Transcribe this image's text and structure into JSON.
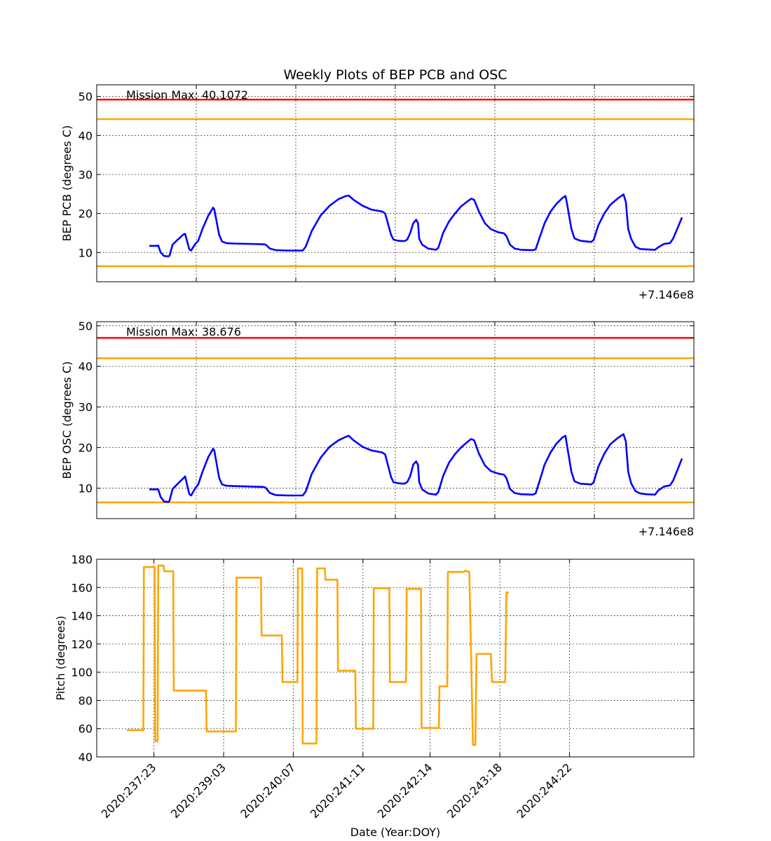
{
  "figure": {
    "title": "Weekly Plots of BEP PCB and OSC",
    "xlabel": "Date (Year:DOY)"
  },
  "chart_data": [
    {
      "type": "line",
      "name": "bep-pcb",
      "ylabel": "BEP PCB (degrees C)",
      "ylim": [
        2.5,
        53
      ],
      "yticks": [
        10,
        20,
        30,
        40,
        50
      ],
      "offset_label": "+7.146e8",
      "annotation": "Mission Max: 40.1072",
      "grid": true,
      "limits": [
        {
          "value": 49.2,
          "color": "#ff0000"
        },
        {
          "value": 44.2,
          "color": "#ffa500"
        },
        {
          "value": 6.5,
          "color": "#ffa500"
        }
      ],
      "series_color": "#0000ff",
      "points": [
        [
          237.88,
          11.7
        ],
        [
          238.0,
          11.7
        ],
        [
          238.03,
          11.8
        ],
        [
          238.07,
          10
        ],
        [
          238.13,
          9.1
        ],
        [
          238.2,
          9.0
        ],
        [
          238.22,
          9.2
        ],
        [
          238.27,
          12
        ],
        [
          238.35,
          13.2
        ],
        [
          238.45,
          14.6
        ],
        [
          238.48,
          14.8
        ],
        [
          238.55,
          10.8
        ],
        [
          238.58,
          10.5
        ],
        [
          238.65,
          12.2
        ],
        [
          238.7,
          13
        ],
        [
          238.77,
          16
        ],
        [
          238.87,
          19.5
        ],
        [
          238.95,
          21.5
        ],
        [
          238.97,
          21
        ],
        [
          239.05,
          14.5
        ],
        [
          239.1,
          12.8
        ],
        [
          239.17,
          12.4
        ],
        [
          239.3,
          12.3
        ],
        [
          239.55,
          12.2
        ],
        [
          239.8,
          12.1
        ],
        [
          239.83,
          12
        ],
        [
          239.9,
          11
        ],
        [
          240.0,
          10.6
        ],
        [
          240.2,
          10.5
        ],
        [
          240.45,
          10.5
        ],
        [
          240.5,
          11.5
        ],
        [
          240.6,
          15.5
        ],
        [
          240.75,
          19.5
        ],
        [
          240.9,
          22
        ],
        [
          241.05,
          23.7
        ],
        [
          241.18,
          24.5
        ],
        [
          241.22,
          24.6
        ],
        [
          241.3,
          23.5
        ],
        [
          241.45,
          22
        ],
        [
          241.6,
          21
        ],
        [
          241.78,
          20.5
        ],
        [
          241.83,
          20
        ],
        [
          241.93,
          14.5
        ],
        [
          241.97,
          13.3
        ],
        [
          242.05,
          13
        ],
        [
          242.15,
          12.9
        ],
        [
          242.2,
          13.3
        ],
        [
          242.25,
          15
        ],
        [
          242.3,
          17.5
        ],
        [
          242.35,
          18.4
        ],
        [
          242.38,
          17.5
        ],
        [
          242.4,
          13.5
        ],
        [
          242.45,
          12
        ],
        [
          242.55,
          11
        ],
        [
          242.68,
          10.7
        ],
        [
          242.72,
          11.2
        ],
        [
          242.8,
          15
        ],
        [
          242.9,
          18
        ],
        [
          243.0,
          20
        ],
        [
          243.1,
          21.8
        ],
        [
          243.2,
          23
        ],
        [
          243.27,
          23.8
        ],
        [
          243.32,
          23.5
        ],
        [
          243.4,
          20.5
        ],
        [
          243.5,
          17.5
        ],
        [
          243.6,
          16
        ],
        [
          243.72,
          15.2
        ],
        [
          243.82,
          14.9
        ],
        [
          243.86,
          14.2
        ],
        [
          243.92,
          12
        ],
        [
          244.0,
          11
        ],
        [
          244.1,
          10.7
        ],
        [
          244.3,
          10.6
        ],
        [
          244.35,
          10.8
        ],
        [
          244.42,
          14
        ],
        [
          244.5,
          17.5
        ],
        [
          244.6,
          20.5
        ],
        [
          244.7,
          22.5
        ],
        [
          244.8,
          24
        ],
        [
          244.85,
          24.5
        ],
        [
          244.87,
          23
        ],
        [
          244.95,
          16
        ],
        [
          245.0,
          13.6
        ],
        [
          245.1,
          13
        ],
        [
          245.22,
          12.8
        ],
        [
          245.28,
          12.7
        ],
        [
          245.32,
          13.2
        ],
        [
          245.4,
          17
        ],
        [
          245.5,
          20
        ],
        [
          245.6,
          22.2
        ],
        [
          245.72,
          23.8
        ],
        [
          245.82,
          24.9
        ],
        [
          245.86,
          23
        ],
        [
          245.9,
          16
        ],
        [
          245.95,
          13.5
        ],
        [
          246.02,
          11.5
        ],
        [
          246.1,
          10.9
        ],
        [
          246.2,
          10.8
        ],
        [
          246.35,
          10.7
        ],
        [
          246.4,
          11.3
        ],
        [
          246.5,
          12.2
        ],
        [
          246.6,
          12.4
        ],
        [
          246.65,
          13.5
        ],
        [
          246.72,
          16
        ],
        [
          246.8,
          19
        ]
      ]
    },
    {
      "type": "line",
      "name": "bep-osc",
      "ylabel": "BEP OSC (degrees C)",
      "ylim": [
        2.5,
        51
      ],
      "yticks": [
        10,
        20,
        30,
        40,
        50
      ],
      "offset_label": "+7.146e8",
      "annotation": "Mission Max: 38.676",
      "grid": true,
      "limits": [
        {
          "value": 47.0,
          "color": "#ff0000"
        },
        {
          "value": 42.0,
          "color": "#ffa500"
        },
        {
          "value": 6.5,
          "color": "#ffa500"
        }
      ],
      "series_color": "#0000ff",
      "points": [
        [
          237.88,
          9.7
        ],
        [
          238.03,
          9.7
        ],
        [
          238.07,
          7.8
        ],
        [
          238.13,
          6.7
        ],
        [
          238.2,
          6.6
        ],
        [
          238.22,
          6.9
        ],
        [
          238.27,
          9.8
        ],
        [
          238.35,
          11
        ],
        [
          238.45,
          12.4
        ],
        [
          238.48,
          12.9
        ],
        [
          238.55,
          8.5
        ],
        [
          238.58,
          8.2
        ],
        [
          238.65,
          10
        ],
        [
          238.7,
          10.9
        ],
        [
          238.77,
          14
        ],
        [
          238.87,
          17.7
        ],
        [
          238.95,
          19.7
        ],
        [
          238.97,
          19.2
        ],
        [
          239.05,
          12.5
        ],
        [
          239.1,
          10.9
        ],
        [
          239.17,
          10.6
        ],
        [
          239.3,
          10.5
        ],
        [
          239.55,
          10.4
        ],
        [
          239.8,
          10.3
        ],
        [
          239.83,
          10.1
        ],
        [
          239.9,
          8.8
        ],
        [
          240.0,
          8.3
        ],
        [
          240.2,
          8.2
        ],
        [
          240.45,
          8.2
        ],
        [
          240.5,
          9.2
        ],
        [
          240.6,
          13.5
        ],
        [
          240.75,
          17.5
        ],
        [
          240.9,
          20.2
        ],
        [
          241.05,
          21.8
        ],
        [
          241.18,
          22.7
        ],
        [
          241.22,
          22.9
        ],
        [
          241.3,
          21.8
        ],
        [
          241.45,
          20.2
        ],
        [
          241.6,
          19.3
        ],
        [
          241.78,
          18.8
        ],
        [
          241.83,
          18.3
        ],
        [
          241.93,
          12.7
        ],
        [
          241.97,
          11.5
        ],
        [
          242.05,
          11.2
        ],
        [
          242.15,
          11.1
        ],
        [
          242.2,
          11.5
        ],
        [
          242.25,
          13
        ],
        [
          242.3,
          15.8
        ],
        [
          242.35,
          16.6
        ],
        [
          242.38,
          15.7
        ],
        [
          242.4,
          11.5
        ],
        [
          242.45,
          9.7
        ],
        [
          242.55,
          8.7
        ],
        [
          242.68,
          8.4
        ],
        [
          242.72,
          9
        ],
        [
          242.8,
          13
        ],
        [
          242.9,
          16.3
        ],
        [
          243.0,
          18.4
        ],
        [
          243.1,
          20
        ],
        [
          243.2,
          21.3
        ],
        [
          243.27,
          22.1
        ],
        [
          243.32,
          21.8
        ],
        [
          243.4,
          18.5
        ],
        [
          243.5,
          15.6
        ],
        [
          243.6,
          14.2
        ],
        [
          243.72,
          13.6
        ],
        [
          243.82,
          13.3
        ],
        [
          243.86,
          12.5
        ],
        [
          243.92,
          9.8
        ],
        [
          244.0,
          8.8
        ],
        [
          244.1,
          8.5
        ],
        [
          244.3,
          8.4
        ],
        [
          244.35,
          8.7
        ],
        [
          244.42,
          12
        ],
        [
          244.5,
          15.8
        ],
        [
          244.6,
          18.8
        ],
        [
          244.7,
          21
        ],
        [
          244.8,
          22.5
        ],
        [
          244.85,
          22.9
        ],
        [
          244.87,
          21
        ],
        [
          244.95,
          14
        ],
        [
          245.0,
          11.7
        ],
        [
          245.1,
          11.1
        ],
        [
          245.22,
          11
        ],
        [
          245.28,
          10.9
        ],
        [
          245.32,
          11.4
        ],
        [
          245.4,
          15.3
        ],
        [
          245.5,
          18.5
        ],
        [
          245.6,
          20.8
        ],
        [
          245.72,
          22.3
        ],
        [
          245.82,
          23.3
        ],
        [
          245.86,
          21.5
        ],
        [
          245.9,
          14
        ],
        [
          245.95,
          11.2
        ],
        [
          246.02,
          9.3
        ],
        [
          246.1,
          8.7
        ],
        [
          246.2,
          8.5
        ],
        [
          246.35,
          8.4
        ],
        [
          246.4,
          9.4
        ],
        [
          246.5,
          10.4
        ],
        [
          246.6,
          10.7
        ],
        [
          246.65,
          11.8
        ],
        [
          246.72,
          14.3
        ],
        [
          246.8,
          17.3
        ]
      ]
    },
    {
      "type": "line",
      "name": "pitch",
      "ylabel": "Pitch (degrees)",
      "ylim": [
        40,
        180
      ],
      "yticks": [
        40,
        60,
        80,
        100,
        120,
        140,
        160,
        180
      ],
      "xticks": [
        "2020:237:23",
        "2020:239:03",
        "2020:240:07",
        "2020:241:11",
        "2020:242:14",
        "2020:243:18",
        "2020:244:22"
      ],
      "grid": true,
      "series_color": "#ffa500",
      "points": [
        [
          237.5,
          59
        ],
        [
          237.78,
          59
        ],
        [
          237.79,
          174.5
        ],
        [
          237.97,
          174.5
        ],
        [
          237.98,
          51
        ],
        [
          238.02,
          51
        ],
        [
          238.03,
          175.5
        ],
        [
          238.12,
          175.5
        ],
        [
          238.13,
          171.5
        ],
        [
          238.28,
          171.5
        ],
        [
          238.29,
          87
        ],
        [
          238.83,
          87
        ],
        [
          238.84,
          58
        ],
        [
          239.33,
          58
        ],
        [
          239.34,
          167
        ],
        [
          239.75,
          167
        ],
        [
          239.76,
          126
        ],
        [
          240.1,
          126
        ],
        [
          240.11,
          93
        ],
        [
          240.36,
          93
        ],
        [
          240.37,
          173.5
        ],
        [
          240.44,
          173.5
        ],
        [
          240.45,
          49.5
        ],
        [
          240.68,
          49.5
        ],
        [
          240.69,
          173.5
        ],
        [
          240.82,
          173.5
        ],
        [
          240.83,
          165.5
        ],
        [
          241.03,
          165.5
        ],
        [
          241.04,
          101
        ],
        [
          241.33,
          101
        ],
        [
          241.34,
          60
        ],
        [
          241.63,
          60
        ],
        [
          241.64,
          159.5
        ],
        [
          241.9,
          159.5
        ],
        [
          241.91,
          93
        ],
        [
          242.18,
          93
        ],
        [
          242.19,
          159
        ],
        [
          242.43,
          159
        ],
        [
          242.44,
          60.5
        ],
        [
          242.73,
          60.5
        ],
        [
          242.74,
          90
        ],
        [
          242.87,
          90
        ],
        [
          242.88,
          171
        ],
        [
          243.15,
          171
        ],
        [
          243.17,
          172
        ],
        [
          243.24,
          171
        ],
        [
          243.3,
          48.5
        ],
        [
          243.34,
          48.5
        ],
        [
          243.36,
          113
        ],
        [
          243.6,
          113
        ],
        [
          243.62,
          93
        ],
        [
          243.84,
          93
        ],
        [
          243.86,
          156.5
        ],
        [
          243.9,
          156.5
        ]
      ]
    }
  ]
}
